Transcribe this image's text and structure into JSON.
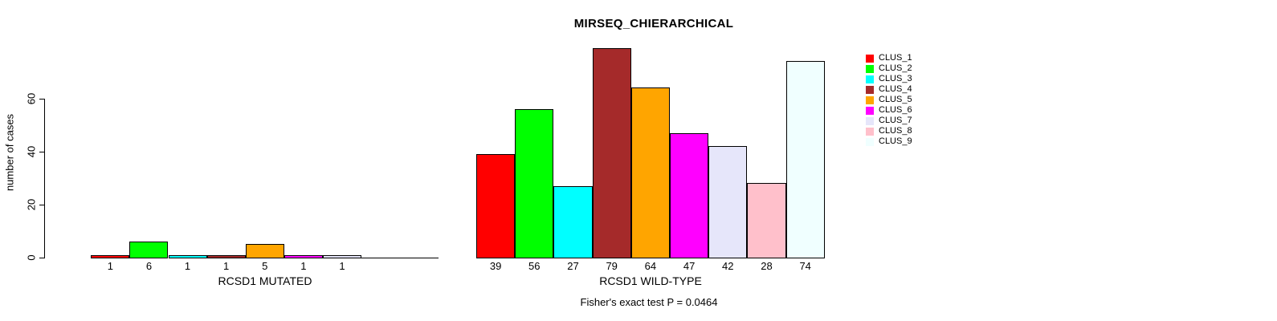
{
  "title": "MIRSEQ_CHIERARCHICAL",
  "ylabel": "number of cases",
  "caption": "Fisher's exact test P = 0.0464",
  "palette": [
    "#FF0000",
    "#00FF00",
    "#00FFFF",
    "#A52A2A",
    "#FFA500",
    "#FF00FF",
    "#E6E6FA",
    "#FFC0CB",
    "#F0FFFF"
  ],
  "legend": {
    "position": "right",
    "items": [
      {
        "label": "CLUS_1",
        "color": "#FF0000"
      },
      {
        "label": "CLUS_2",
        "color": "#00FF00"
      },
      {
        "label": "CLUS_3",
        "color": "#00FFFF"
      },
      {
        "label": "CLUS_4",
        "color": "#A52A2A"
      },
      {
        "label": "CLUS_5",
        "color": "#FFA500"
      },
      {
        "label": "CLUS_6",
        "color": "#FF00FF"
      },
      {
        "label": "CLUS_7",
        "color": "#E6E6FA"
      },
      {
        "label": "CLUS_8",
        "color": "#FFC0CB"
      },
      {
        "label": "CLUS_9",
        "color": "#F0FFFF"
      }
    ]
  },
  "chart_data": [
    {
      "type": "bar",
      "title": "MIRSEQ_CHIERARCHICAL",
      "xlabel": "RCSD1 MUTATED",
      "ylabel": "number of cases",
      "categories": [
        "CLUS_1",
        "CLUS_2",
        "CLUS_3",
        "CLUS_4",
        "CLUS_5",
        "CLUS_6",
        "CLUS_7",
        "CLUS_8",
        "CLUS_9"
      ],
      "values": [
        1,
        6,
        1,
        1,
        5,
        1,
        1,
        0,
        0
      ],
      "bar_labels": [
        "1",
        "6",
        "1",
        "1",
        "5",
        "1",
        "1",
        "",
        ""
      ],
      "yticks": [
        0,
        20,
        40,
        60
      ],
      "ylim": [
        0,
        80
      ],
      "grid": false,
      "legend_position": "right"
    },
    {
      "type": "bar",
      "title": "MIRSEQ_CHIERARCHICAL",
      "xlabel": "RCSD1 WILD-TYPE",
      "ylabel": "number of cases",
      "categories": [
        "CLUS_1",
        "CLUS_2",
        "CLUS_3",
        "CLUS_4",
        "CLUS_5",
        "CLUS_6",
        "CLUS_7",
        "CLUS_8",
        "CLUS_9"
      ],
      "values": [
        39,
        56,
        27,
        79,
        64,
        47,
        42,
        28,
        74
      ],
      "bar_labels": [
        "39",
        "56",
        "27",
        "79",
        "64",
        "47",
        "42",
        "28",
        "74"
      ],
      "yticks": [
        0,
        20,
        40,
        60
      ],
      "ylim": [
        0,
        80
      ],
      "grid": false,
      "legend_position": "right"
    }
  ],
  "annotation": "Fisher's exact test P = 0.0464"
}
